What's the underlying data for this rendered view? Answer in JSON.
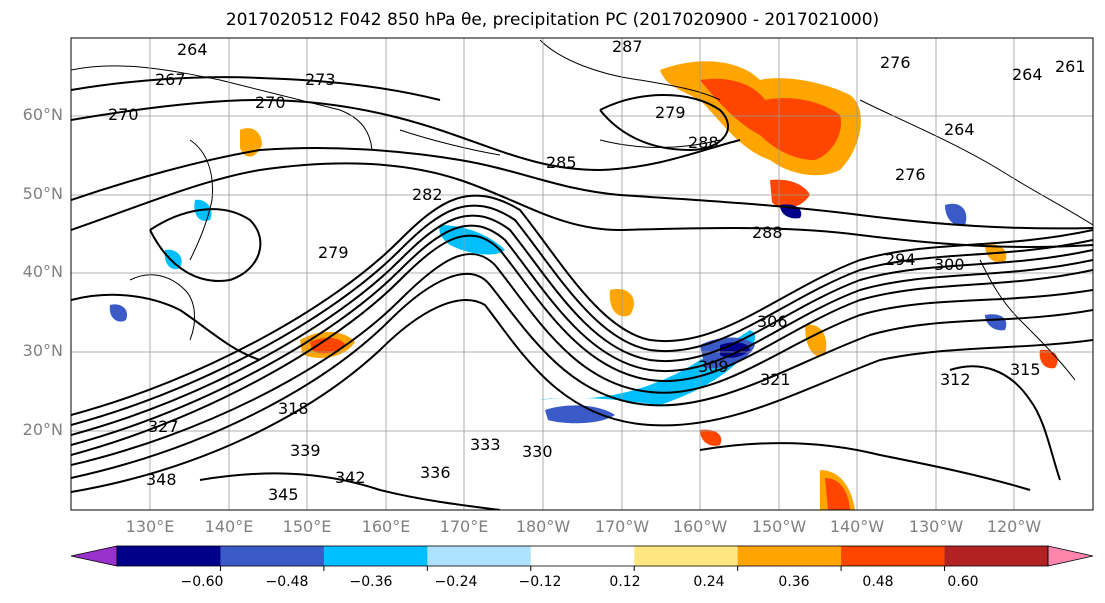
{
  "title": "2017020512 F042 850 hPa θe, precipitation PC (2017020900 - 2017021000)",
  "map": {
    "lat_labels": [
      "60°N",
      "50°N",
      "40°N",
      "30°N",
      "20°N"
    ],
    "lon_labels": [
      "130°E",
      "140°E",
      "150°E",
      "160°E",
      "170°E",
      "180°W",
      "170°W",
      "160°W",
      "150°W",
      "140°W",
      "130°W",
      "120°W"
    ],
    "contour_labels": [
      "264",
      "267",
      "270",
      "270",
      "273",
      "276",
      "279",
      "282",
      "285",
      "288",
      "294",
      "300",
      "306",
      "309",
      "312",
      "315",
      "318",
      "321",
      "327",
      "330",
      "333",
      "336",
      "339",
      "342",
      "345",
      "348",
      "287",
      "279",
      "288",
      "276",
      "264",
      "264",
      "261"
    ]
  },
  "colorbar": {
    "colors": [
      "#9932CC",
      "#00008B",
      "#3A5BC7",
      "#00BFFF",
      "#ADE2FF",
      "#FFFFFF",
      "#FFE680",
      "#FFA500",
      "#FF4500",
      "#B22222",
      "#FF85AD"
    ],
    "tick_labels": [
      "−0.60",
      "−0.48",
      "−0.36",
      "−0.24",
      "−0.12",
      "0.12",
      "0.24",
      "0.36",
      "0.48",
      "0.60"
    ]
  }
}
